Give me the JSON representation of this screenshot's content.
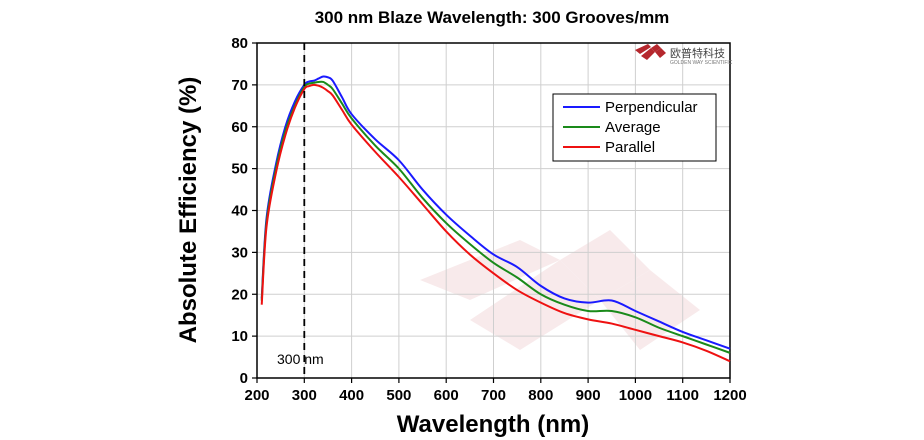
{
  "chart_data": {
    "type": "line",
    "title": "300 nm Blaze Wavelength: 300 Grooves/mm",
    "xlabel": "Wavelength (nm)",
    "ylabel": "Absolute Efficiency (%)",
    "xlim": [
      200,
      1200
    ],
    "ylim": [
      0,
      80
    ],
    "xticks": [
      200,
      300,
      400,
      500,
      600,
      700,
      800,
      900,
      1000,
      1100,
      1200
    ],
    "yticks": [
      0,
      10,
      20,
      30,
      40,
      50,
      60,
      70,
      80
    ],
    "grid": true,
    "legend_position": "top-right",
    "reference_line": {
      "x": 300,
      "label": "300 nm"
    },
    "series": [
      {
        "name": "Perpendicular",
        "color": "#1a1aff",
        "x": [
          210,
          220,
          240,
          260,
          280,
          300,
          310,
          320,
          330,
          340,
          350,
          360,
          380,
          400,
          450,
          500,
          550,
          600,
          650,
          700,
          750,
          800,
          850,
          900,
          950,
          1000,
          1050,
          1100,
          1150,
          1200
        ],
        "y": [
          19,
          38,
          51,
          60,
          66,
          70,
          70.8,
          71,
          71.5,
          72,
          71.8,
          71,
          67,
          63,
          57,
          52,
          45,
          39,
          34,
          29.5,
          26.5,
          22,
          19,
          18,
          18.5,
          16,
          13.5,
          11,
          9,
          7
        ]
      },
      {
        "name": "Average",
        "color": "#1a8a1a",
        "x": [
          210,
          220,
          240,
          260,
          280,
          300,
          310,
          320,
          330,
          340,
          350,
          360,
          380,
          400,
          450,
          500,
          550,
          600,
          650,
          700,
          750,
          800,
          850,
          900,
          950,
          1000,
          1050,
          1100,
          1150,
          1200
        ],
        "y": [
          18.5,
          37,
          50,
          59,
          65,
          69.5,
          70.3,
          70.5,
          70.7,
          70.7,
          70,
          69,
          65.5,
          62,
          55.5,
          50,
          43,
          37,
          32,
          27.5,
          24,
          20,
          17.5,
          16,
          16,
          14.5,
          12,
          10,
          8,
          6
        ]
      },
      {
        "name": "Parallel",
        "color": "#ee1111",
        "x": [
          210,
          220,
          240,
          260,
          280,
          300,
          310,
          320,
          330,
          340,
          350,
          360,
          380,
          400,
          450,
          500,
          550,
          600,
          650,
          700,
          750,
          800,
          850,
          900,
          950,
          1000,
          1050,
          1100,
          1150,
          1200
        ],
        "y": [
          17.5,
          36,
          49,
          58,
          64.5,
          69,
          69.7,
          70,
          69.8,
          69.3,
          68.5,
          67.5,
          64,
          60.5,
          54,
          48,
          41.5,
          35,
          29.5,
          25,
          21,
          18,
          15.5,
          14,
          13,
          11.5,
          10,
          8.5,
          6.5,
          4
        ]
      }
    ]
  },
  "logo": {
    "text": "欧普特科技",
    "subtext": "GOLDEN WAY SCIENTIFIC",
    "color": "#b5272d"
  }
}
